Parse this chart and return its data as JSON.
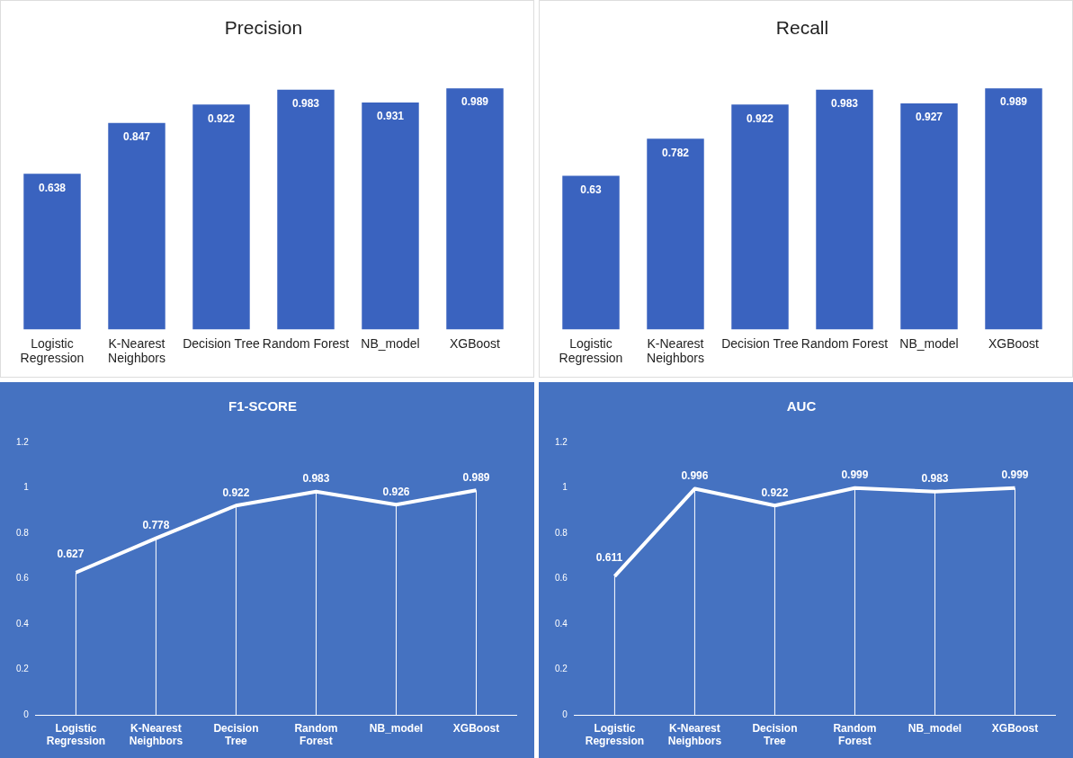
{
  "chart_data": [
    {
      "type": "bar",
      "title": "Precision",
      "categories": [
        "Logistic Regression",
        "K-Nearest Neighbors",
        "Decision Tree",
        "Random Forest",
        "NB_model",
        "XGBoost"
      ],
      "values": [
        0.638,
        0.847,
        0.922,
        0.983,
        0.931,
        0.989
      ],
      "color": "#3a63bf",
      "data_labels": true,
      "tick_labels": "x",
      "grid": false,
      "legend": false
    },
    {
      "type": "bar",
      "title": "Recall",
      "categories": [
        "Logistic Regression",
        "K-Nearest Neighbors",
        "Decision Tree",
        "Random Forest",
        "NB_model",
        "XGBoost"
      ],
      "values": [
        0.63,
        0.782,
        0.922,
        0.983,
        0.927,
        0.989
      ],
      "color": "#3a63bf",
      "data_labels": true,
      "tick_labels": "x",
      "grid": false,
      "legend": false
    },
    {
      "type": "line",
      "title": "F1-SCORE",
      "categories": [
        "Logistic Regression",
        "K-Nearest Neighbors",
        "Decision Tree",
        "Random Forest",
        "NB_model",
        "XGBoost"
      ],
      "values": [
        0.627,
        0.778,
        0.922,
        0.983,
        0.926,
        0.989
      ],
      "color": "#ffffff",
      "ylim": [
        0,
        1.2
      ],
      "yticks": [
        0,
        0.2,
        0.4,
        0.6,
        0.8,
        1,
        1.2
      ],
      "data_labels": true,
      "marker": "none",
      "grid": "x",
      "legend": false
    },
    {
      "type": "line",
      "title": "AUC",
      "categories": [
        "Logistic Regression",
        "K-Nearest Neighbors",
        "Decision Tree",
        "Random Forest",
        "NB_model",
        "XGBoost"
      ],
      "values": [
        0.611,
        0.996,
        0.922,
        0.999,
        0.983,
        0.999
      ],
      "color": "#ffffff",
      "ylim": [
        0,
        1.2
      ],
      "yticks": [
        0,
        0.2,
        0.4,
        0.6,
        0.8,
        1,
        1.2
      ],
      "data_labels": true,
      "marker": "none",
      "grid": "x",
      "legend": false
    }
  ]
}
